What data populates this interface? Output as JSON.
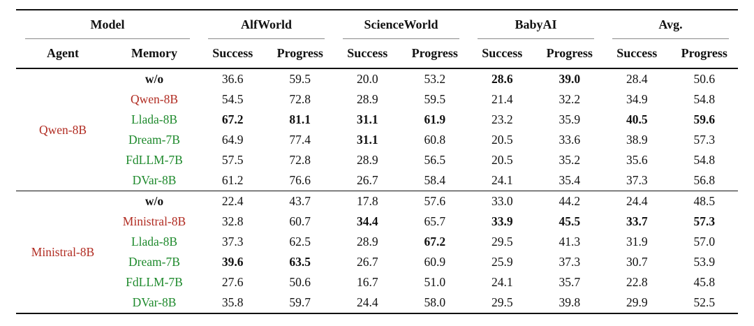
{
  "table": {
    "header": {
      "groups": [
        {
          "label": "Model"
        },
        {
          "label": "AlfWorld"
        },
        {
          "label": "ScienceWorld"
        },
        {
          "label": "BabyAI"
        },
        {
          "label": "Avg."
        }
      ],
      "sub": {
        "agent": "Agent",
        "memory": "Memory",
        "success": "Success",
        "progress": "Progress"
      }
    },
    "groups": [
      {
        "agent": "Qwen-8B",
        "rows": [
          {
            "memory": "w/o",
            "values": [
              "36.6",
              "59.5",
              "20.0",
              "53.2",
              "28.6",
              "39.0",
              "28.4",
              "50.6"
            ]
          },
          {
            "memory": "Qwen-8B",
            "values": [
              "54.5",
              "72.8",
              "28.9",
              "59.5",
              "21.4",
              "32.2",
              "34.9",
              "54.8"
            ]
          },
          {
            "memory": "Llada-8B",
            "values": [
              "67.2",
              "81.1",
              "31.1",
              "61.9",
              "23.2",
              "35.9",
              "40.5",
              "59.6"
            ]
          },
          {
            "memory": "Dream-7B",
            "values": [
              "64.9",
              "77.4",
              "31.1",
              "60.8",
              "20.5",
              "33.6",
              "38.9",
              "57.3"
            ]
          },
          {
            "memory": "FdLLM-7B",
            "values": [
              "57.5",
              "72.8",
              "28.9",
              "56.5",
              "20.5",
              "35.2",
              "35.6",
              "54.8"
            ]
          },
          {
            "memory": "DVar-8B",
            "values": [
              "61.2",
              "76.6",
              "26.7",
              "58.4",
              "24.1",
              "35.4",
              "37.3",
              "56.8"
            ]
          }
        ]
      },
      {
        "agent": "Ministral-8B",
        "rows": [
          {
            "memory": "w/o",
            "values": [
              "22.4",
              "43.7",
              "17.8",
              "57.6",
              "33.0",
              "44.2",
              "24.4",
              "48.5"
            ]
          },
          {
            "memory": "Ministral-8B",
            "values": [
              "32.8",
              "60.7",
              "34.4",
              "65.7",
              "33.9",
              "45.5",
              "33.7",
              "57.3"
            ]
          },
          {
            "memory": "Llada-8B",
            "values": [
              "37.3",
              "62.5",
              "28.9",
              "67.2",
              "29.5",
              "41.3",
              "31.9",
              "57.0"
            ]
          },
          {
            "memory": "Dream-7B",
            "values": [
              "39.6",
              "63.5",
              "26.7",
              "60.9",
              "25.9",
              "37.3",
              "30.7",
              "53.9"
            ]
          },
          {
            "memory": "FdLLM-7B",
            "values": [
              "27.6",
              "50.6",
              "16.7",
              "51.0",
              "24.1",
              "35.7",
              "22.8",
              "45.8"
            ]
          },
          {
            "memory": "DVar-8B",
            "values": [
              "35.8",
              "59.7",
              "24.4",
              "58.0",
              "29.5",
              "39.8",
              "29.9",
              "52.5"
            ]
          }
        ]
      }
    ]
  },
  "colors": {
    "agent_red": "#b12c22",
    "memory_green": "#1f8a2d",
    "rule_gray": "#8a8a8a"
  }
}
